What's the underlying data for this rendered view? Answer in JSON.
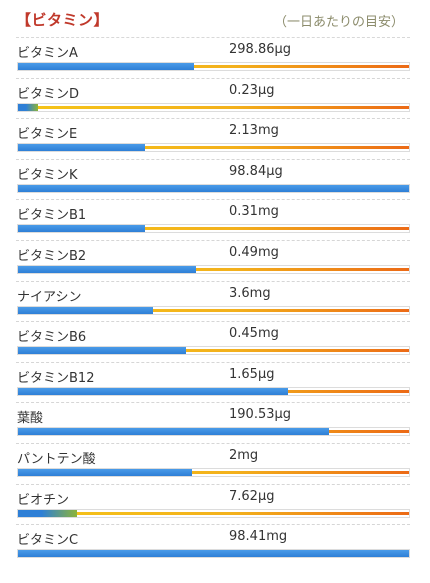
{
  "header": {
    "title": "【ビタミン】",
    "note": "（一日あたりの目安）"
  },
  "colors": {
    "title": "#c0392b",
    "fill": "#2e7fd6",
    "target_start": "#f5c518",
    "target_end": "#ec6a16"
  },
  "vitamins": [
    {
      "name": "ビタミンA",
      "amount": "298.86μg",
      "ratio": 0.45
    },
    {
      "name": "ビタミンD",
      "amount": "0.23μg",
      "ratio": 0.05
    },
    {
      "name": "ビタミンE",
      "amount": "2.13mg",
      "ratio": 0.325
    },
    {
      "name": "ビタミンK",
      "amount": "98.84μg",
      "ratio": 1.0
    },
    {
      "name": "ビタミンB1",
      "amount": "0.31mg",
      "ratio": 0.325
    },
    {
      "name": "ビタミンB2",
      "amount": "0.49mg",
      "ratio": 0.455
    },
    {
      "name": "ナイアシン",
      "amount": "3.6mg",
      "ratio": 0.345
    },
    {
      "name": "ビタミンB6",
      "amount": "0.45mg",
      "ratio": 0.43
    },
    {
      "name": "ビタミンB12",
      "amount": "1.65μg",
      "ratio": 0.69
    },
    {
      "name": "葉酸",
      "amount": "190.53μg",
      "ratio": 0.795
    },
    {
      "name": "パントテン酸",
      "amount": "2mg",
      "ratio": 0.445
    },
    {
      "name": "ビオチン",
      "amount": "7.62μg",
      "ratio": 0.15
    },
    {
      "name": "ビタミンC",
      "amount": "98.41mg",
      "ratio": 1.0
    }
  ]
}
